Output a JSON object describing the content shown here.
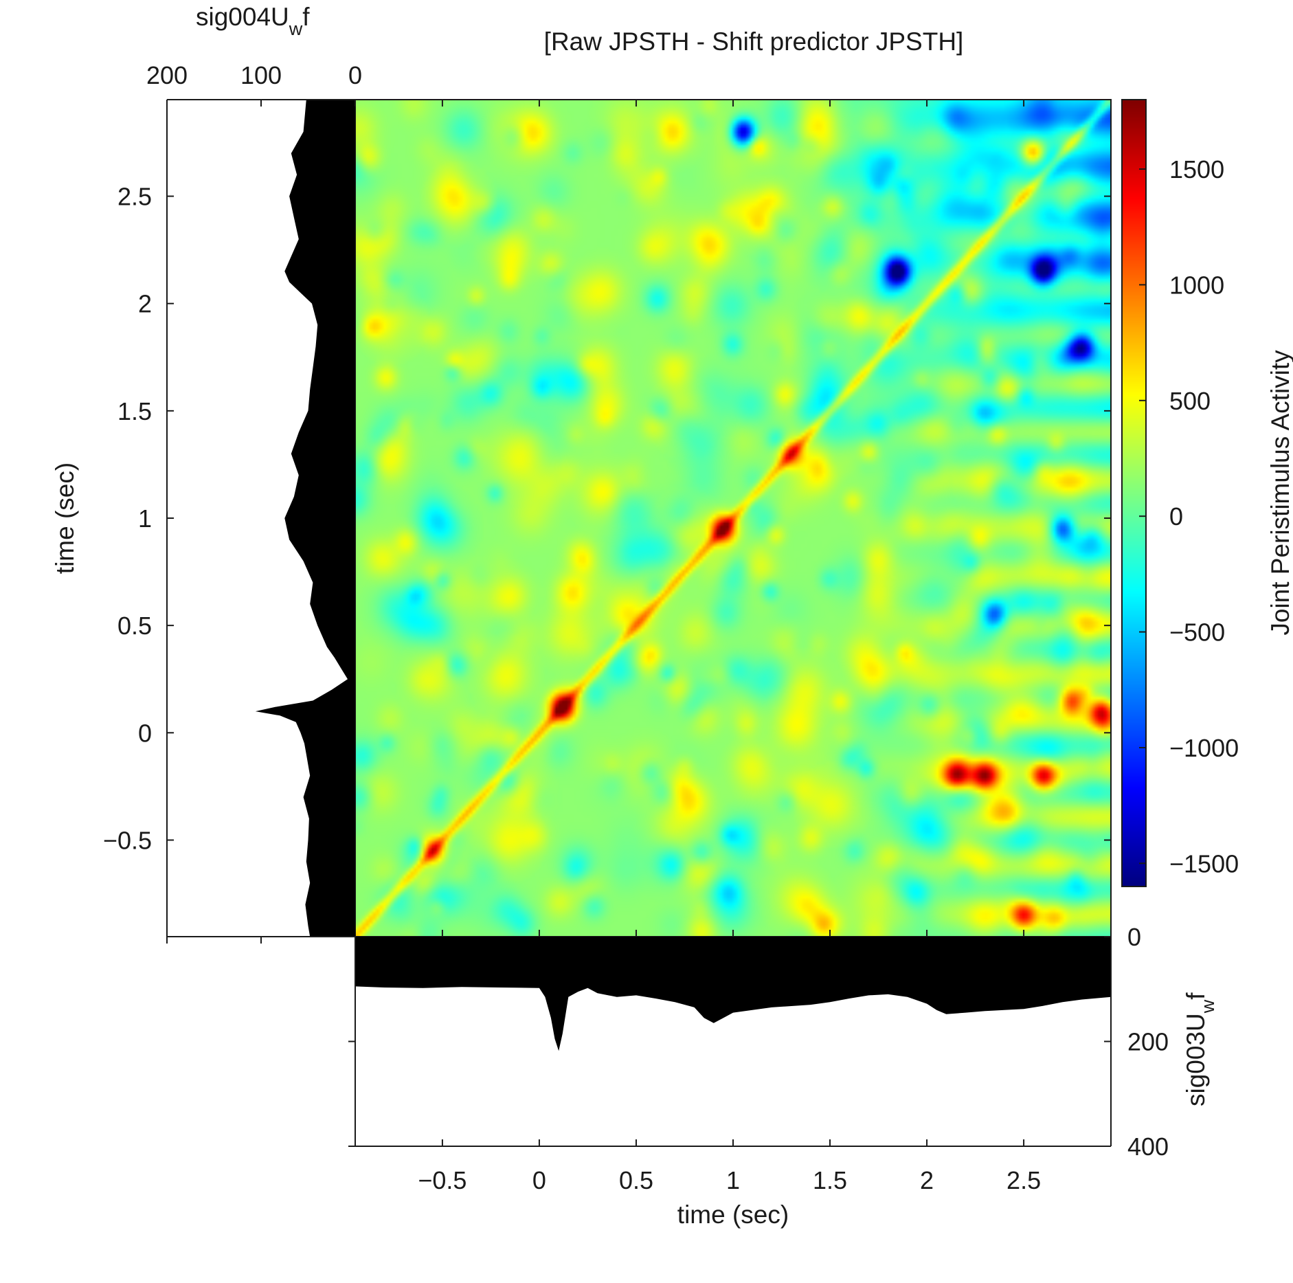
{
  "chart_data": {
    "type": "heatmap",
    "title": "[Raw JPSTH - Shift predictor JPSTH]",
    "heatmap": {
      "x_range": [
        -0.95,
        2.95
      ],
      "y_range": [
        -0.95,
        2.95
      ],
      "xticks": [
        -0.5,
        0,
        0.5,
        1,
        1.5,
        2,
        2.5
      ],
      "xtick_labels": [
        "−0.5",
        "0",
        "0.5",
        "1",
        "1.5",
        "2",
        "2.5"
      ],
      "yticks": [
        -0.5,
        0,
        0.5,
        1,
        1.5,
        2,
        2.5
      ],
      "ytick_labels": [
        "−0.5",
        "0",
        "0.5",
        "1",
        "1.5",
        "2",
        "2.5"
      ],
      "colormap": "jet",
      "color_range": [
        -1600,
        1800
      ],
      "background_value": 150,
      "diagonal_ridge_value": 550,
      "hotspots": [
        {
          "x": 0.12,
          "y": 0.12,
          "value": 1800
        },
        {
          "x": 0.95,
          "y": 0.95,
          "value": 1600
        },
        {
          "x": -0.55,
          "y": -0.55,
          "value": 1150
        },
        {
          "x": 1.3,
          "y": 1.3,
          "value": 1000
        },
        {
          "x": 2.3,
          "y": -0.2,
          "value": 1500
        },
        {
          "x": 2.6,
          "y": -0.2,
          "value": 1400
        },
        {
          "x": 2.15,
          "y": -0.2,
          "value": 1300
        },
        {
          "x": 2.55,
          "y": 2.7,
          "value": 1200
        },
        {
          "x": 2.75,
          "y": 0.15,
          "value": 1300
        },
        {
          "x": 2.9,
          "y": 0.1,
          "value": 1400
        },
        {
          "x": 2.5,
          "y": -0.85,
          "value": 1200
        },
        {
          "x": 1.05,
          "y": 2.8,
          "value": -1500
        },
        {
          "x": 1.85,
          "y": 2.15,
          "value": -1400
        },
        {
          "x": 2.6,
          "y": 2.15,
          "value": -1300
        },
        {
          "x": 2.8,
          "y": 1.8,
          "value": -1200
        },
        {
          "x": 2.7,
          "y": 0.95,
          "value": -1000
        },
        {
          "x": 2.35,
          "y": 0.55,
          "value": -800
        }
      ]
    },
    "colorbar": {
      "ticks": [
        -1500,
        -1000,
        -500,
        0,
        500,
        1000,
        1500
      ],
      "tick_labels": [
        "−1500",
        "−1000",
        "−500",
        "0",
        "500",
        "1000",
        "1500"
      ],
      "label": "Joint Peristimulus Activity"
    },
    "left_psth": {
      "name": "sig004U_w f",
      "label_main": "sig004U",
      "label_sub": "w",
      "label_tail": "f",
      "axis_ticks": [
        200,
        100,
        0
      ],
      "axis_tick_labels": [
        "200",
        "100",
        "0"
      ],
      "axis_range": [
        0,
        200
      ],
      "ylabel": "time (sec)",
      "time": [
        -0.95,
        -0.9,
        -0.8,
        -0.7,
        -0.6,
        -0.5,
        -0.4,
        -0.3,
        -0.2,
        -0.1,
        -0.05,
        0.0,
        0.05,
        0.08,
        0.1,
        0.12,
        0.15,
        0.2,
        0.25,
        0.3,
        0.35,
        0.4,
        0.5,
        0.6,
        0.7,
        0.8,
        0.9,
        1.0,
        1.1,
        1.2,
        1.3,
        1.4,
        1.5,
        1.6,
        1.7,
        1.8,
        1.9,
        2.0,
        2.05,
        2.1,
        2.15,
        2.2,
        2.3,
        2.4,
        2.5,
        2.6,
        2.7,
        2.8,
        2.95
      ],
      "rate": [
        48,
        50,
        53,
        48,
        52,
        50,
        49,
        55,
        48,
        52,
        54,
        58,
        63,
        80,
        106,
        85,
        45,
        25,
        8,
        15,
        22,
        30,
        40,
        48,
        45,
        55,
        70,
        75,
        65,
        60,
        68,
        60,
        50,
        48,
        45,
        42,
        40,
        46,
        58,
        70,
        75,
        70,
        60,
        65,
        70,
        62,
        68,
        55,
        52
      ]
    },
    "bottom_psth": {
      "name": "sig003U_w f",
      "label_main": "sig003U",
      "label_sub": "w",
      "label_tail": "f",
      "axis_ticks": [
        0,
        200,
        400
      ],
      "axis_tick_labels": [
        "0",
        "200",
        "400"
      ],
      "axis_range": [
        0,
        400
      ],
      "xlabel": "time (sec)",
      "time": [
        -0.95,
        -0.8,
        -0.6,
        -0.4,
        -0.2,
        0.0,
        0.03,
        0.06,
        0.08,
        0.1,
        0.12,
        0.15,
        0.2,
        0.25,
        0.3,
        0.4,
        0.5,
        0.6,
        0.7,
        0.8,
        0.85,
        0.9,
        0.95,
        1.0,
        1.2,
        1.4,
        1.5,
        1.6,
        1.7,
        1.8,
        1.9,
        2.0,
        2.05,
        2.1,
        2.2,
        2.3,
        2.4,
        2.5,
        2.6,
        2.7,
        2.8,
        2.95
      ],
      "rate": [
        95,
        97,
        98,
        96,
        97,
        98,
        115,
        155,
        195,
        218,
        185,
        115,
        105,
        98,
        108,
        115,
        112,
        118,
        125,
        135,
        155,
        165,
        155,
        145,
        135,
        130,
        125,
        118,
        112,
        110,
        115,
        128,
        140,
        148,
        145,
        142,
        140,
        138,
        132,
        125,
        120,
        115
      ]
    }
  }
}
